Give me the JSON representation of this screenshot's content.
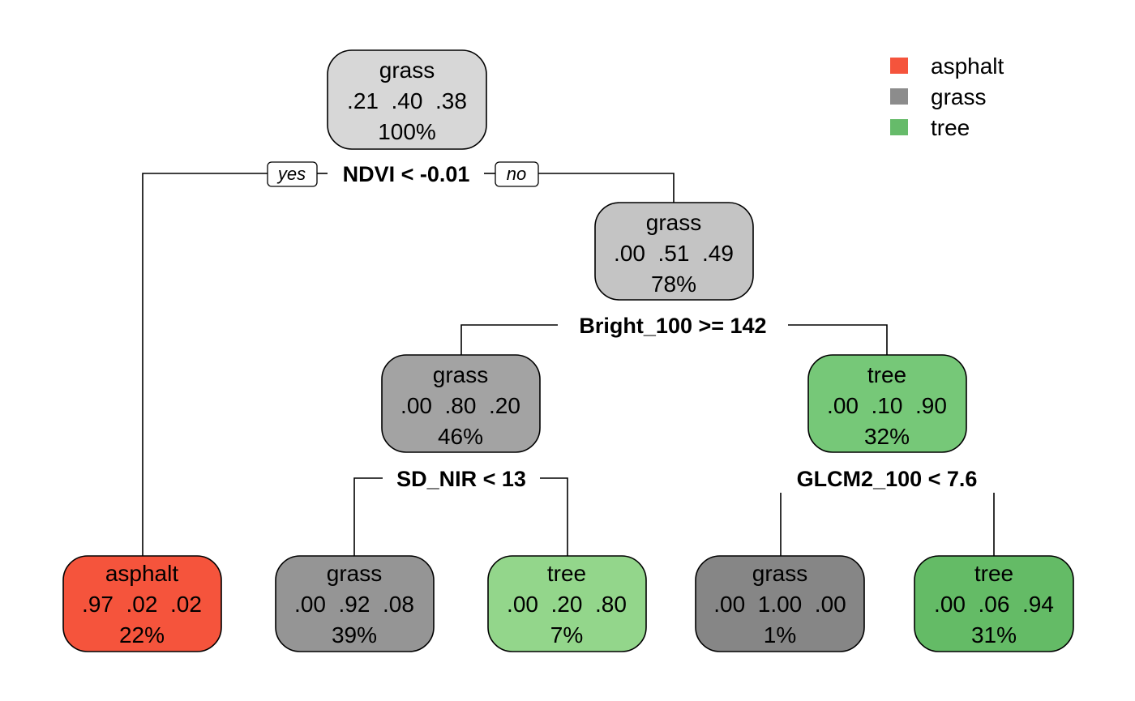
{
  "legend": [
    {
      "label": "asphalt",
      "color": "#F5543C"
    },
    {
      "label": "grass",
      "color": "#8C8C8C"
    },
    {
      "label": "tree",
      "color": "#66BB6A"
    }
  ],
  "branch_labels": {
    "yes": "yes",
    "no": "no"
  },
  "nodes": [
    {
      "id": "n1",
      "class": "grass",
      "probs": ".21  .40  .38",
      "pct": "100%",
      "color": "#D7D7D7"
    },
    {
      "id": "n3",
      "class": "grass",
      "probs": ".00  .51  .49",
      "pct": "78%",
      "color": "#C4C4C4"
    },
    {
      "id": "n6",
      "class": "grass",
      "probs": ".00  .80  .20",
      "pct": "46%",
      "color": "#A3A3A3"
    },
    {
      "id": "n7",
      "class": "tree",
      "probs": ".00  .10  .90",
      "pct": "32%",
      "color": "#76C878"
    },
    {
      "id": "n2",
      "class": "asphalt",
      "probs": ".97  .02  .02",
      "pct": "22%",
      "color": "#F5543C"
    },
    {
      "id": "n12",
      "class": "grass",
      "probs": ".00  .92  .08",
      "pct": "39%",
      "color": "#959595"
    },
    {
      "id": "n13",
      "class": "tree",
      "probs": ".00  .20  .80",
      "pct": "7%",
      "color": "#93D68B"
    },
    {
      "id": "n14",
      "class": "grass",
      "probs": ".00  1.00  .00",
      "pct": "1%",
      "color": "#868686"
    },
    {
      "id": "n15",
      "class": "tree",
      "probs": ".00  .06  .94",
      "pct": "31%",
      "color": "#64BB66"
    }
  ],
  "splits": [
    {
      "id": "s1",
      "text": "NDVI < -0.01"
    },
    {
      "id": "s3",
      "text": "Bright_100 >= 142"
    },
    {
      "id": "s6",
      "text": "SD_NIR < 13"
    },
    {
      "id": "s7",
      "text": "GLCM2_100 < 7.6"
    }
  ]
}
